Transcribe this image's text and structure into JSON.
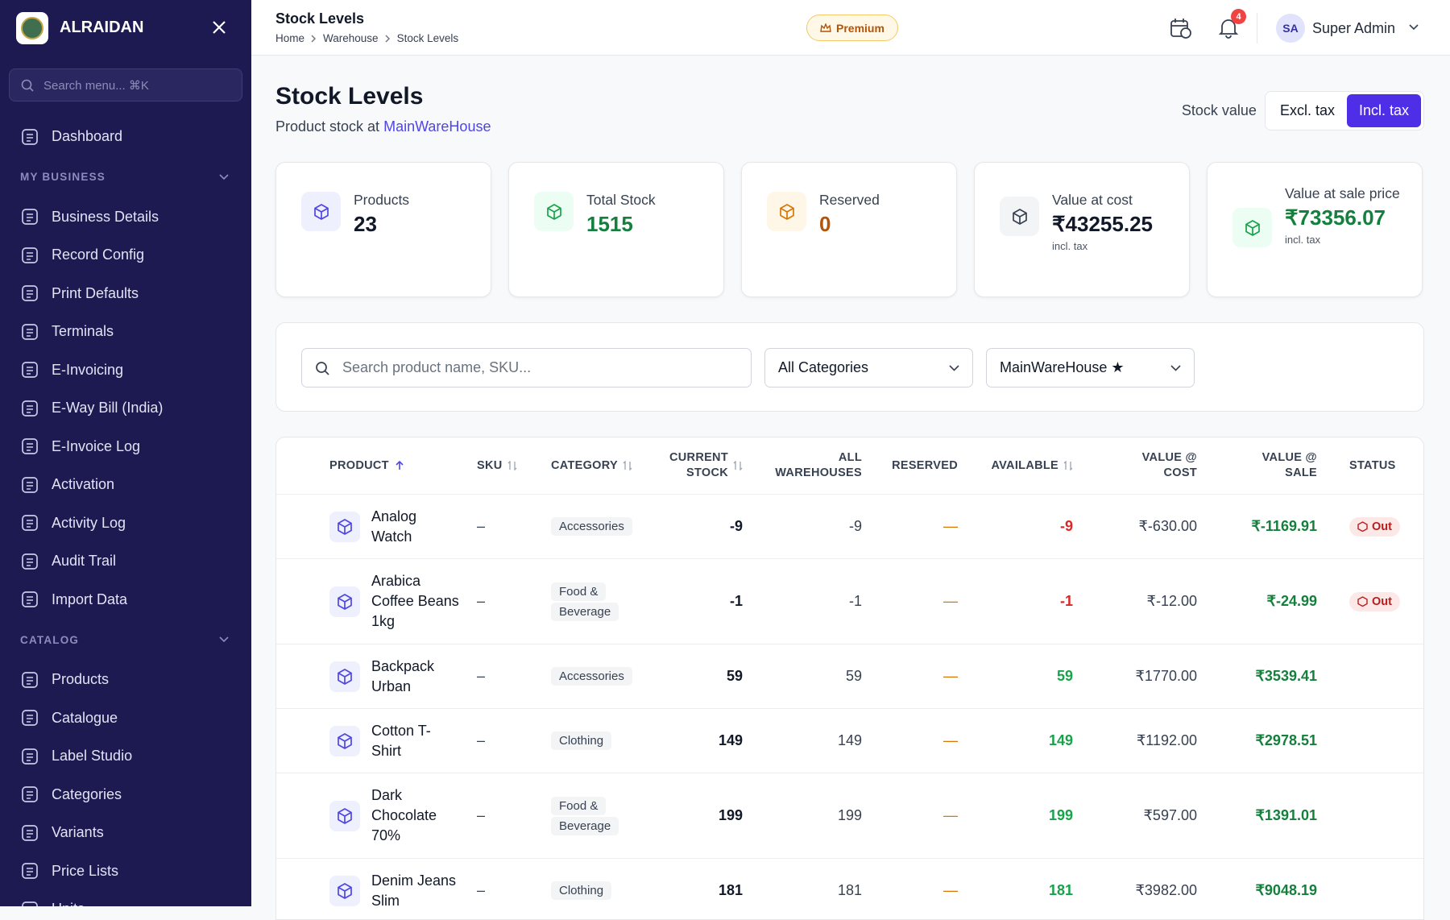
{
  "sidebar": {
    "brand": "ALRAIDAN",
    "search": "Search menu... ⌘K",
    "top_items": [
      "Dashboard"
    ],
    "sections": [
      {
        "title": "MY BUSINESS",
        "items": [
          "Business Details",
          "Record Config",
          "Print Defaults",
          "Terminals",
          "E-Invoicing",
          "E-Way Bill (India)",
          "E-Invoice Log",
          "Activation",
          "Activity Log",
          "Audit Trail",
          "Import Data"
        ]
      },
      {
        "title": "CATALOG",
        "items": [
          "Products",
          "Catalogue",
          "Label Studio",
          "Categories",
          "Variants",
          "Price Lists",
          "Units"
        ]
      }
    ]
  },
  "header": {
    "title": "Stock Levels",
    "breadcrumb": [
      "Home",
      "Warehouse",
      "Stock Levels"
    ],
    "badge": "Premium",
    "notifications": "4",
    "user_initials": "SA",
    "user_name": "Super Admin"
  },
  "page": {
    "title": "Stock Levels",
    "subtitle": "Product stock at",
    "warehouse": "MainWareHouse",
    "stock_value_label": "Stock value",
    "toggle": [
      "Excl. tax",
      "Incl. tax"
    ]
  },
  "cards": [
    {
      "label": "Products",
      "value": "23",
      "color": "#111827",
      "icon_color": "#4f46e5",
      "icon_bg": "#eef0fd"
    },
    {
      "label": "Total Stock",
      "value": "1515",
      "color": "#15803d",
      "icon_color": "#16a34a",
      "icon_bg": "#ecfdf3"
    },
    {
      "label": "Reserved",
      "value": "0",
      "color": "#b45309",
      "icon_color": "#d97706",
      "icon_bg": "#fef6e7"
    },
    {
      "label": "Value at cost",
      "value": "₹43255.25",
      "note": "incl. tax",
      "color": "#111827",
      "icon_color": "#374151",
      "icon_bg": "#f3f4f6"
    },
    {
      "label": "Value at sale price",
      "value": "₹73356.07",
      "note": "incl. tax",
      "color": "#15803d",
      "icon_color": "#16a34a",
      "icon_bg": "#ecfdf3"
    }
  ],
  "filters": {
    "search": "Search product name, SKU...",
    "category": "All Categories",
    "warehouse": "MainWareHouse ★"
  },
  "table": {
    "columns": [
      "PRODUCT",
      "SKU",
      "CATEGORY",
      "CURRENT STOCK",
      "ALL WAREHOUSES",
      "RESERVED",
      "AVAILABLE",
      "VALUE @ COST",
      "VALUE @ SALE",
      "STATUS"
    ],
    "rows": [
      {
        "cells": [
          "Analog Watch",
          "–",
          "Accessories",
          "-9",
          "-9",
          "—",
          "-9",
          "₹-630.00",
          "₹-1169.91"
        ],
        "status": "Out"
      },
      {
        "cells": [
          "Arabica Coffee Beans 1kg",
          "–",
          "Food & Beverage",
          "-1",
          "-1",
          "—",
          "-1",
          "₹-12.00",
          "₹-24.99"
        ],
        "status": "Out"
      },
      {
        "cells": [
          "Backpack Urban",
          "–",
          "Accessories",
          "59",
          "59",
          "—",
          "59",
          "₹1770.00",
          "₹3539.41"
        ]
      },
      {
        "cells": [
          "Cotton T-Shirt",
          "–",
          "Clothing",
          "149",
          "149",
          "—",
          "149",
          "₹1192.00",
          "₹2978.51"
        ]
      },
      {
        "cells": [
          "Dark Chocolate 70%",
          "–",
          "Food & Beverage",
          "199",
          "199",
          "—",
          "199",
          "₹597.00",
          "₹1391.01"
        ]
      },
      {
        "cells": [
          "Denim Jeans Slim",
          "–",
          "Clothing",
          "181",
          "181",
          "—",
          "181",
          "₹3982.00",
          "₹9048.19"
        ]
      }
    ]
  }
}
